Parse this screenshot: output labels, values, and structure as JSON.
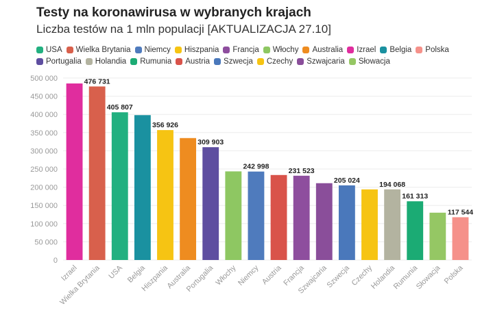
{
  "header": {
    "title": "Testy na koronawirusa w wybranych krajach",
    "subtitle": "Liczba testów na 1 mln populacji [AKTUALIZACJA 27.10]"
  },
  "legend": [
    {
      "name": "USA",
      "color": "#22b080"
    },
    {
      "name": "Wielka Brytania",
      "color": "#d8604c"
    },
    {
      "name": "Niemcy",
      "color": "#4f7bbd"
    },
    {
      "name": "Hiszpania",
      "color": "#f6c413"
    },
    {
      "name": "Francja",
      "color": "#8e4e9e"
    },
    {
      "name": "Włochy",
      "color": "#8ec762"
    },
    {
      "name": "Australia",
      "color": "#ee8c20"
    },
    {
      "name": "Izrael",
      "color": "#e02d9e"
    },
    {
      "name": "Belgia",
      "color": "#1a91a0"
    },
    {
      "name": "Polska",
      "color": "#f5918a"
    },
    {
      "name": "Portugalia",
      "color": "#5e4ea0"
    },
    {
      "name": "Holandia",
      "color": "#b3b3a0"
    },
    {
      "name": "Rumunia",
      "color": "#1bab74"
    },
    {
      "name": "Austria",
      "color": "#d9534a"
    },
    {
      "name": "Szwecja",
      "color": "#4a78bb"
    },
    {
      "name": "Czechy",
      "color": "#f6c413"
    },
    {
      "name": "Szwajcaria",
      "color": "#8a4e9a"
    },
    {
      "name": "Słowacja",
      "color": "#95c764"
    }
  ],
  "chart_data": {
    "type": "bar",
    "title": "Testy na koronawirusa w wybranych krajach",
    "subtitle": "Liczba testów na 1 mln populacji [AKTUALIZACJA 27.10]",
    "xlabel": "",
    "ylabel": "",
    "ylim": [
      0,
      500000
    ],
    "yticks": [
      0,
      50000,
      100000,
      150000,
      200000,
      250000,
      300000,
      350000,
      400000,
      450000,
      500000
    ],
    "ytick_labels": [
      "0",
      "50 000",
      "100 000",
      "150 000",
      "200 000",
      "250 000",
      "300 000",
      "350 000",
      "400 000",
      "450 000",
      "500 000"
    ],
    "grid": true,
    "legend_position": "top",
    "categories": [
      "Izrael",
      "Wielka Brytania",
      "USA",
      "Belgia",
      "Hiszpania",
      "Australia",
      "Portugalia",
      "Włochy",
      "Niemcy",
      "Austria",
      "Francja",
      "Szwajcaria",
      "Szwecja",
      "Czechy",
      "Holandia",
      "Rumunia",
      "Słowacja",
      "Polska"
    ],
    "values": [
      485000,
      476731,
      405807,
      398000,
      356926,
      335000,
      309903,
      243500,
      242998,
      233500,
      231523,
      211000,
      205024,
      194000,
      194068,
      161313,
      130000,
      117544
    ],
    "colors": [
      "#e02d9e",
      "#d8604c",
      "#22b080",
      "#1a91a0",
      "#f6c413",
      "#ee8c20",
      "#5e4ea0",
      "#8ec762",
      "#4f7bbd",
      "#d9534a",
      "#8e4e9e",
      "#8a4e9a",
      "#4a78bb",
      "#f6c413",
      "#b3b3a0",
      "#1bab74",
      "#95c764",
      "#f5918a"
    ],
    "data_labels": [
      null,
      "476 731",
      "405 807",
      null,
      "356 926",
      null,
      "309 903",
      null,
      "242 998",
      null,
      "231 523",
      null,
      "205 024",
      null,
      "194 068",
      "161 313",
      null,
      "117 544"
    ]
  }
}
